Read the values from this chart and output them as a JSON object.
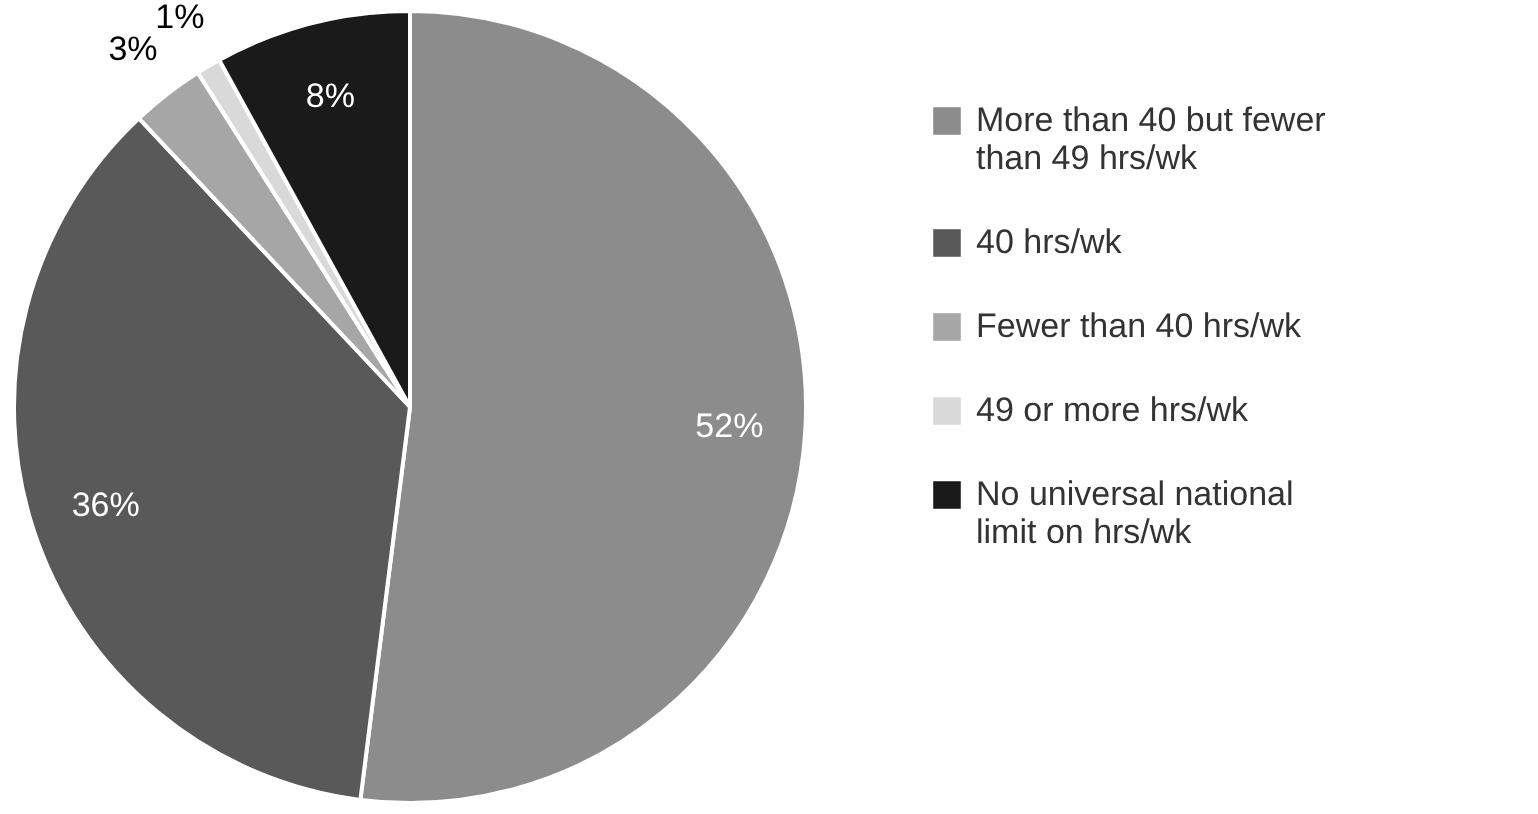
{
  "chart_data": {
    "type": "pie",
    "categories": [
      "More than 40 but fewer than 49 hrs/wk",
      "40 hrs/wk",
      "Fewer than 40 hrs/wk",
      "49 or more hrs/wk",
      "No universal national limit on hrs/wk"
    ],
    "values": [
      52,
      36,
      3,
      1,
      8
    ],
    "colors": [
      "#8c8c8c",
      "#595959",
      "#a6a6a6",
      "#d9d9d9",
      "#1a1a1a"
    ],
    "value_labels": [
      "52%",
      "36%",
      "3%",
      "1%",
      "8%"
    ],
    "legend": "right"
  }
}
